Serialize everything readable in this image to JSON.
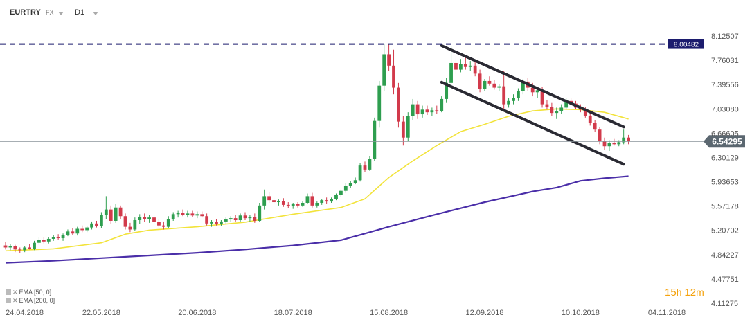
{
  "toolbar": {
    "symbol": "EURTRY",
    "market": "FX",
    "timeframe": "D1"
  },
  "countdown": {
    "hours": "15",
    "hours_unit": "h",
    "minutes": "12",
    "minutes_unit": "m"
  },
  "indicators": [
    {
      "label": "EMA [50, 0]",
      "color": "#f2e33a"
    },
    {
      "label": "EMA [200, 0]",
      "color": "#4a2ea8"
    }
  ],
  "colors": {
    "up": "#2e9e4f",
    "down": "#d23a4b",
    "ema50": "#f2e33a",
    "ema200": "#4a2ea8",
    "channel": "#2a2a33",
    "resistance": "#1c1c6e",
    "price_tag": "#5b6770"
  },
  "chart_data": {
    "type": "candlestick",
    "instrument": "EURTRY",
    "timeframe": "D1",
    "ylim": [
      4.11275,
      8.12507
    ],
    "y_ticks": [
      "8.12507",
      "7.76031",
      "7.39556",
      "7.03080",
      "6.66605",
      "6.30129",
      "5.93653",
      "5.57178",
      "5.20702",
      "4.84227",
      "4.47751",
      "4.11275"
    ],
    "x_tick_labels": [
      "24.04.2018",
      "22.05.2018",
      "20.06.2018",
      "18.07.2018",
      "15.08.2018",
      "12.09.2018",
      "10.10.2018",
      "04.11.2018"
    ],
    "x_tick_index": [
      0,
      20,
      40,
      60,
      80,
      100,
      120,
      138
    ],
    "resistance_level": {
      "value": 8.00482,
      "label": "8.00482"
    },
    "last_price": {
      "value": 6.54295,
      "label": "6.54295"
    },
    "series": [
      {
        "name": "EMA [50, 0]",
        "kind": "line",
        "points": [
          [
            0,
            4.9
          ],
          [
            10,
            4.93
          ],
          [
            20,
            5.02
          ],
          [
            25,
            5.15
          ],
          [
            30,
            5.21
          ],
          [
            40,
            5.26
          ],
          [
            50,
            5.33
          ],
          [
            60,
            5.45
          ],
          [
            70,
            5.55
          ],
          [
            75,
            5.68
          ],
          [
            80,
            6.0
          ],
          [
            85,
            6.25
          ],
          [
            90,
            6.48
          ],
          [
            95,
            6.69
          ],
          [
            100,
            6.8
          ],
          [
            105,
            6.92
          ],
          [
            110,
            7.0
          ],
          [
            115,
            7.03
          ],
          [
            120,
            7.02
          ],
          [
            125,
            6.98
          ],
          [
            130,
            6.88
          ]
        ]
      },
      {
        "name": "EMA [200, 0]",
        "kind": "line",
        "points": [
          [
            0,
            4.72
          ],
          [
            10,
            4.75
          ],
          [
            20,
            4.79
          ],
          [
            30,
            4.83
          ],
          [
            40,
            4.87
          ],
          [
            50,
            4.92
          ],
          [
            60,
            4.98
          ],
          [
            70,
            5.06
          ],
          [
            75,
            5.16
          ],
          [
            80,
            5.26
          ],
          [
            90,
            5.45
          ],
          [
            100,
            5.63
          ],
          [
            110,
            5.79
          ],
          [
            115,
            5.85
          ],
          [
            120,
            5.95
          ],
          [
            125,
            5.99
          ],
          [
            130,
            6.02
          ]
        ]
      },
      {
        "name": "Channel upper",
        "kind": "line",
        "points": [
          [
            91,
            7.98
          ],
          [
            129,
            6.76
          ]
        ]
      },
      {
        "name": "Channel lower",
        "kind": "line",
        "points": [
          [
            91,
            7.43
          ],
          [
            129,
            6.2
          ]
        ]
      }
    ],
    "candles": [
      {
        "i": 0,
        "o": 4.98,
        "h": 5.03,
        "l": 4.92,
        "c": 4.95
      },
      {
        "i": 1,
        "o": 4.95,
        "h": 5.0,
        "l": 4.91,
        "c": 4.97
      },
      {
        "i": 2,
        "o": 4.97,
        "h": 4.99,
        "l": 4.88,
        "c": 4.92
      },
      {
        "i": 3,
        "o": 4.92,
        "h": 4.95,
        "l": 4.87,
        "c": 4.91
      },
      {
        "i": 4,
        "o": 4.91,
        "h": 4.97,
        "l": 4.88,
        "c": 4.95
      },
      {
        "i": 5,
        "o": 4.95,
        "h": 5.0,
        "l": 4.92,
        "c": 4.93
      },
      {
        "i": 6,
        "o": 4.93,
        "h": 5.05,
        "l": 4.91,
        "c": 5.02
      },
      {
        "i": 7,
        "o": 5.02,
        "h": 5.1,
        "l": 4.99,
        "c": 5.06
      },
      {
        "i": 8,
        "o": 5.06,
        "h": 5.1,
        "l": 5.01,
        "c": 5.04
      },
      {
        "i": 9,
        "o": 5.04,
        "h": 5.1,
        "l": 5.01,
        "c": 5.08
      },
      {
        "i": 10,
        "o": 5.08,
        "h": 5.14,
        "l": 5.05,
        "c": 5.11
      },
      {
        "i": 11,
        "o": 5.11,
        "h": 5.15,
        "l": 5.07,
        "c": 5.09
      },
      {
        "i": 12,
        "o": 5.09,
        "h": 5.16,
        "l": 5.05,
        "c": 5.14
      },
      {
        "i": 13,
        "o": 5.14,
        "h": 5.22,
        "l": 5.12,
        "c": 5.19
      },
      {
        "i": 14,
        "o": 5.19,
        "h": 5.24,
        "l": 5.14,
        "c": 5.16
      },
      {
        "i": 15,
        "o": 5.16,
        "h": 5.26,
        "l": 5.13,
        "c": 5.23
      },
      {
        "i": 16,
        "o": 5.23,
        "h": 5.28,
        "l": 5.18,
        "c": 5.21
      },
      {
        "i": 17,
        "o": 5.21,
        "h": 5.27,
        "l": 5.18,
        "c": 5.25
      },
      {
        "i": 18,
        "o": 5.25,
        "h": 5.34,
        "l": 5.22,
        "c": 5.31
      },
      {
        "i": 19,
        "o": 5.31,
        "h": 5.35,
        "l": 5.25,
        "c": 5.27
      },
      {
        "i": 20,
        "o": 5.27,
        "h": 5.48,
        "l": 5.24,
        "c": 5.44
      },
      {
        "i": 21,
        "o": 5.44,
        "h": 5.72,
        "l": 5.38,
        "c": 5.52
      },
      {
        "i": 22,
        "o": 5.52,
        "h": 5.58,
        "l": 5.3,
        "c": 5.35
      },
      {
        "i": 23,
        "o": 5.35,
        "h": 5.6,
        "l": 5.32,
        "c": 5.55
      },
      {
        "i": 24,
        "o": 5.55,
        "h": 5.58,
        "l": 5.38,
        "c": 5.42
      },
      {
        "i": 25,
        "o": 5.42,
        "h": 5.46,
        "l": 5.22,
        "c": 5.26
      },
      {
        "i": 26,
        "o": 5.26,
        "h": 5.32,
        "l": 5.18,
        "c": 5.22
      },
      {
        "i": 27,
        "o": 5.22,
        "h": 5.4,
        "l": 5.2,
        "c": 5.36
      },
      {
        "i": 28,
        "o": 5.36,
        "h": 5.45,
        "l": 5.3,
        "c": 5.41
      },
      {
        "i": 29,
        "o": 5.41,
        "h": 5.46,
        "l": 5.33,
        "c": 5.38
      },
      {
        "i": 30,
        "o": 5.38,
        "h": 5.44,
        "l": 5.32,
        "c": 5.4
      },
      {
        "i": 31,
        "o": 5.4,
        "h": 5.44,
        "l": 5.3,
        "c": 5.33
      },
      {
        "i": 32,
        "o": 5.33,
        "h": 5.38,
        "l": 5.25,
        "c": 5.28
      },
      {
        "i": 33,
        "o": 5.28,
        "h": 5.34,
        "l": 5.22,
        "c": 5.26
      },
      {
        "i": 34,
        "o": 5.26,
        "h": 5.42,
        "l": 5.24,
        "c": 5.38
      },
      {
        "i": 35,
        "o": 5.38,
        "h": 5.48,
        "l": 5.35,
        "c": 5.45
      },
      {
        "i": 36,
        "o": 5.45,
        "h": 5.5,
        "l": 5.4,
        "c": 5.47
      },
      {
        "i": 37,
        "o": 5.47,
        "h": 5.52,
        "l": 5.42,
        "c": 5.44
      },
      {
        "i": 38,
        "o": 5.44,
        "h": 5.5,
        "l": 5.4,
        "c": 5.46
      },
      {
        "i": 39,
        "o": 5.46,
        "h": 5.5,
        "l": 5.41,
        "c": 5.43
      },
      {
        "i": 40,
        "o": 5.43,
        "h": 5.49,
        "l": 5.39,
        "c": 5.45
      },
      {
        "i": 41,
        "o": 5.45,
        "h": 5.49,
        "l": 5.4,
        "c": 5.42
      },
      {
        "i": 42,
        "o": 5.42,
        "h": 5.46,
        "l": 5.28,
        "c": 5.31
      },
      {
        "i": 43,
        "o": 5.31,
        "h": 5.36,
        "l": 5.26,
        "c": 5.33
      },
      {
        "i": 44,
        "o": 5.33,
        "h": 5.38,
        "l": 5.28,
        "c": 5.3
      },
      {
        "i": 45,
        "o": 5.3,
        "h": 5.36,
        "l": 5.27,
        "c": 5.34
      },
      {
        "i": 46,
        "o": 5.34,
        "h": 5.4,
        "l": 5.3,
        "c": 5.37
      },
      {
        "i": 47,
        "o": 5.37,
        "h": 5.42,
        "l": 5.33,
        "c": 5.39
      },
      {
        "i": 48,
        "o": 5.39,
        "h": 5.44,
        "l": 5.34,
        "c": 5.36
      },
      {
        "i": 49,
        "o": 5.36,
        "h": 5.46,
        "l": 5.34,
        "c": 5.43
      },
      {
        "i": 50,
        "o": 5.43,
        "h": 5.48,
        "l": 5.36,
        "c": 5.39
      },
      {
        "i": 51,
        "o": 5.39,
        "h": 5.44,
        "l": 5.34,
        "c": 5.41
      },
      {
        "i": 52,
        "o": 5.41,
        "h": 5.46,
        "l": 5.32,
        "c": 5.35
      },
      {
        "i": 53,
        "o": 5.35,
        "h": 5.62,
        "l": 5.33,
        "c": 5.58
      },
      {
        "i": 54,
        "o": 5.58,
        "h": 5.82,
        "l": 5.52,
        "c": 5.72
      },
      {
        "i": 55,
        "o": 5.72,
        "h": 5.78,
        "l": 5.62,
        "c": 5.66
      },
      {
        "i": 56,
        "o": 5.66,
        "h": 5.7,
        "l": 5.6,
        "c": 5.63
      },
      {
        "i": 57,
        "o": 5.63,
        "h": 5.67,
        "l": 5.58,
        "c": 5.65
      },
      {
        "i": 58,
        "o": 5.65,
        "h": 5.69,
        "l": 5.56,
        "c": 5.59
      },
      {
        "i": 59,
        "o": 5.59,
        "h": 5.63,
        "l": 5.54,
        "c": 5.57
      },
      {
        "i": 60,
        "o": 5.57,
        "h": 5.62,
        "l": 5.53,
        "c": 5.6
      },
      {
        "i": 61,
        "o": 5.6,
        "h": 5.63,
        "l": 5.55,
        "c": 5.58
      },
      {
        "i": 62,
        "o": 5.58,
        "h": 5.64,
        "l": 5.56,
        "c": 5.62
      },
      {
        "i": 63,
        "o": 5.62,
        "h": 5.76,
        "l": 5.6,
        "c": 5.72
      },
      {
        "i": 64,
        "o": 5.72,
        "h": 5.77,
        "l": 5.55,
        "c": 5.58
      },
      {
        "i": 65,
        "o": 5.58,
        "h": 5.64,
        "l": 5.55,
        "c": 5.62
      },
      {
        "i": 66,
        "o": 5.62,
        "h": 5.68,
        "l": 5.59,
        "c": 5.66
      },
      {
        "i": 67,
        "o": 5.66,
        "h": 5.7,
        "l": 5.61,
        "c": 5.64
      },
      {
        "i": 68,
        "o": 5.64,
        "h": 5.7,
        "l": 5.62,
        "c": 5.68
      },
      {
        "i": 69,
        "o": 5.68,
        "h": 5.76,
        "l": 5.66,
        "c": 5.74
      },
      {
        "i": 70,
        "o": 5.74,
        "h": 5.82,
        "l": 5.71,
        "c": 5.8
      },
      {
        "i": 71,
        "o": 5.8,
        "h": 5.92,
        "l": 5.77,
        "c": 5.88
      },
      {
        "i": 72,
        "o": 5.88,
        "h": 5.95,
        "l": 5.84,
        "c": 5.92
      },
      {
        "i": 73,
        "o": 5.92,
        "h": 6.0,
        "l": 5.9,
        "c": 5.96
      },
      {
        "i": 74,
        "o": 5.96,
        "h": 6.22,
        "l": 5.94,
        "c": 6.18
      },
      {
        "i": 75,
        "o": 6.18,
        "h": 6.24,
        "l": 6.08,
        "c": 6.12
      },
      {
        "i": 76,
        "o": 6.12,
        "h": 6.32,
        "l": 6.1,
        "c": 6.28
      },
      {
        "i": 77,
        "o": 6.28,
        "h": 6.9,
        "l": 6.25,
        "c": 6.85
      },
      {
        "i": 78,
        "o": 6.85,
        "h": 7.45,
        "l": 6.75,
        "c": 7.38
      },
      {
        "i": 79,
        "o": 7.38,
        "h": 8.0,
        "l": 7.3,
        "c": 7.85
      },
      {
        "i": 80,
        "o": 7.85,
        "h": 8.0,
        "l": 7.6,
        "c": 7.68
      },
      {
        "i": 81,
        "o": 7.68,
        "h": 7.92,
        "l": 7.25,
        "c": 7.35
      },
      {
        "i": 82,
        "o": 7.35,
        "h": 7.42,
        "l": 6.75,
        "c": 6.84
      },
      {
        "i": 83,
        "o": 6.84,
        "h": 6.92,
        "l": 6.48,
        "c": 6.6
      },
      {
        "i": 84,
        "o": 6.6,
        "h": 6.98,
        "l": 6.54,
        "c": 6.92
      },
      {
        "i": 85,
        "o": 6.92,
        "h": 7.18,
        "l": 6.86,
        "c": 7.1
      },
      {
        "i": 86,
        "o": 7.1,
        "h": 7.15,
        "l": 6.88,
        "c": 6.95
      },
      {
        "i": 87,
        "o": 6.95,
        "h": 7.08,
        "l": 6.9,
        "c": 7.02
      },
      {
        "i": 88,
        "o": 7.02,
        "h": 7.08,
        "l": 6.94,
        "c": 6.98
      },
      {
        "i": 89,
        "o": 6.98,
        "h": 7.05,
        "l": 6.93,
        "c": 7.01
      },
      {
        "i": 90,
        "o": 7.01,
        "h": 7.08,
        "l": 6.96,
        "c": 7.0
      },
      {
        "i": 91,
        "o": 7.0,
        "h": 7.22,
        "l": 6.98,
        "c": 7.18
      },
      {
        "i": 92,
        "o": 7.18,
        "h": 7.5,
        "l": 7.12,
        "c": 7.42
      },
      {
        "i": 93,
        "o": 7.42,
        "h": 7.98,
        "l": 7.35,
        "c": 7.72
      },
      {
        "i": 94,
        "o": 7.72,
        "h": 7.82,
        "l": 7.55,
        "c": 7.62
      },
      {
        "i": 95,
        "o": 7.62,
        "h": 7.78,
        "l": 7.58,
        "c": 7.7
      },
      {
        "i": 96,
        "o": 7.7,
        "h": 7.8,
        "l": 7.62,
        "c": 7.66
      },
      {
        "i": 97,
        "o": 7.66,
        "h": 7.75,
        "l": 7.6,
        "c": 7.68
      },
      {
        "i": 98,
        "o": 7.68,
        "h": 7.76,
        "l": 7.52,
        "c": 7.56
      },
      {
        "i": 99,
        "o": 7.56,
        "h": 7.62,
        "l": 7.28,
        "c": 7.33
      },
      {
        "i": 100,
        "o": 7.33,
        "h": 7.48,
        "l": 7.3,
        "c": 7.45
      },
      {
        "i": 101,
        "o": 7.45,
        "h": 7.52,
        "l": 7.38,
        "c": 7.41
      },
      {
        "i": 102,
        "o": 7.41,
        "h": 7.46,
        "l": 7.32,
        "c": 7.35
      },
      {
        "i": 103,
        "o": 7.35,
        "h": 7.4,
        "l": 7.3,
        "c": 7.37
      },
      {
        "i": 104,
        "o": 7.37,
        "h": 7.6,
        "l": 7.0,
        "c": 7.1
      },
      {
        "i": 105,
        "o": 7.1,
        "h": 7.2,
        "l": 7.05,
        "c": 7.15
      },
      {
        "i": 106,
        "o": 7.15,
        "h": 7.25,
        "l": 7.1,
        "c": 7.2
      },
      {
        "i": 107,
        "o": 7.2,
        "h": 7.34,
        "l": 7.15,
        "c": 7.3
      },
      {
        "i": 108,
        "o": 7.3,
        "h": 7.48,
        "l": 7.25,
        "c": 7.44
      },
      {
        "i": 109,
        "o": 7.44,
        "h": 7.5,
        "l": 7.3,
        "c": 7.35
      },
      {
        "i": 110,
        "o": 7.35,
        "h": 7.42,
        "l": 7.22,
        "c": 7.28
      },
      {
        "i": 111,
        "o": 7.28,
        "h": 7.36,
        "l": 7.2,
        "c": 7.31
      },
      {
        "i": 112,
        "o": 7.31,
        "h": 7.36,
        "l": 7.05,
        "c": 7.1
      },
      {
        "i": 113,
        "o": 7.1,
        "h": 7.16,
        "l": 7.02,
        "c": 7.06
      },
      {
        "i": 114,
        "o": 7.06,
        "h": 7.12,
        "l": 6.92,
        "c": 6.97
      },
      {
        "i": 115,
        "o": 6.97,
        "h": 7.05,
        "l": 6.88,
        "c": 7.0
      },
      {
        "i": 116,
        "o": 7.0,
        "h": 7.1,
        "l": 6.96,
        "c": 7.05
      },
      {
        "i": 117,
        "o": 7.05,
        "h": 7.2,
        "l": 7.02,
        "c": 7.15
      },
      {
        "i": 118,
        "o": 7.15,
        "h": 7.2,
        "l": 7.08,
        "c": 7.11
      },
      {
        "i": 119,
        "o": 7.11,
        "h": 7.15,
        "l": 7.03,
        "c": 7.05
      },
      {
        "i": 120,
        "o": 7.05,
        "h": 7.1,
        "l": 6.98,
        "c": 7.02
      },
      {
        "i": 121,
        "o": 7.02,
        "h": 7.06,
        "l": 6.9,
        "c": 6.93
      },
      {
        "i": 122,
        "o": 6.93,
        "h": 6.98,
        "l": 6.78,
        "c": 6.82
      },
      {
        "i": 123,
        "o": 6.82,
        "h": 6.86,
        "l": 6.68,
        "c": 6.72
      },
      {
        "i": 124,
        "o": 6.72,
        "h": 6.76,
        "l": 6.5,
        "c": 6.55
      },
      {
        "i": 125,
        "o": 6.55,
        "h": 6.6,
        "l": 6.42,
        "c": 6.47
      },
      {
        "i": 126,
        "o": 6.47,
        "h": 6.56,
        "l": 6.4,
        "c": 6.52
      },
      {
        "i": 127,
        "o": 6.52,
        "h": 6.58,
        "l": 6.48,
        "c": 6.5
      },
      {
        "i": 128,
        "o": 6.5,
        "h": 6.56,
        "l": 6.47,
        "c": 6.53
      },
      {
        "i": 129,
        "o": 6.53,
        "h": 6.72,
        "l": 6.5,
        "c": 6.6
      },
      {
        "i": 130,
        "o": 6.6,
        "h": 6.64,
        "l": 6.5,
        "c": 6.54
      }
    ]
  }
}
